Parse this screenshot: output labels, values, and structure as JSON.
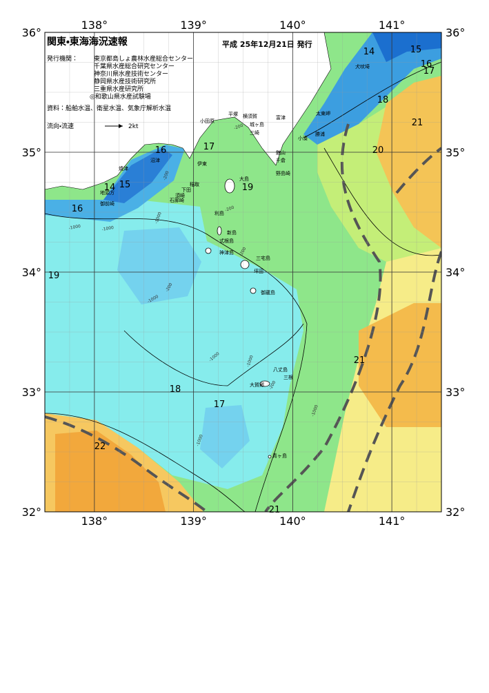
{
  "header": {
    "title": "関東・東海海況速報",
    "date": "平成 25年12月21日 発行",
    "publisher_label": "発行機関：",
    "publishers": [
      "東京都島しょ農林水産総合センター",
      "千葉県水産総合研究センター",
      "神奈川県水産技術センター",
      "静岡県水産技術研究所",
      "三重県水産研究所",
      "◎和歌山県水産試験場"
    ],
    "sources": "資料：船舶水温、衛星水温、気象庁解析水温",
    "current_legend": "流向・流速",
    "current_unit": "2kt"
  },
  "axes": {
    "lon_ticks": [
      {
        "value": 138,
        "label": "138°"
      },
      {
        "value": 139,
        "label": "139°"
      },
      {
        "value": 140,
        "label": "140°"
      },
      {
        "value": 141,
        "label": "141°"
      }
    ],
    "lat_ticks": [
      {
        "value": 36,
        "label": "36°"
      },
      {
        "value": 35,
        "label": "35°"
      },
      {
        "value": 34,
        "label": "34°"
      },
      {
        "value": 33,
        "label": "33°"
      },
      {
        "value": 32,
        "label": "32°"
      }
    ]
  },
  "temperature_labels": [
    14,
    15,
    16,
    17,
    18,
    21,
    20,
    16,
    17,
    19,
    14,
    15,
    16,
    19,
    18,
    17,
    21,
    22,
    21
  ],
  "place_names": [
    "平塚",
    "横須賀",
    "小田原",
    "富津",
    "城ヶ島",
    "三崎",
    "太東岬",
    "勝浦",
    "小湊",
    "館山",
    "千倉",
    "野島崎",
    "伊東",
    "稲取",
    "下田",
    "須崎",
    "石廊崎",
    "沼津",
    "焼津",
    "地頭方",
    "御前崎",
    "大島",
    "利島",
    "新島",
    "式根島",
    "神津島",
    "三宅島",
    "坪田",
    "御蔵島",
    "八丈島",
    "三根",
    "大賀郷",
    "青ヶ島",
    "犬吠埼"
  ],
  "depth_labels": [
    "-200",
    "-200",
    "-200",
    "-200",
    "-200",
    "-200",
    "-1000",
    "-1000",
    "-1000",
    "-1000",
    "-1000",
    "-1000",
    "-1000",
    "-1000"
  ]
}
